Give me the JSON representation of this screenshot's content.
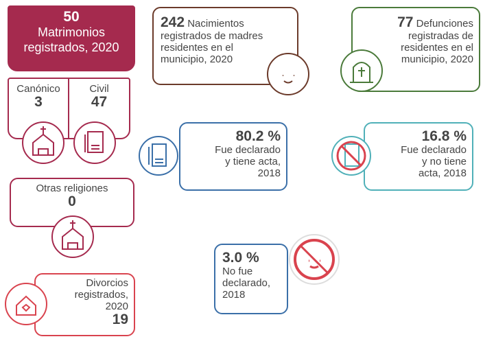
{
  "matrimonios": {
    "value": 50,
    "lines": [
      "Matrimonios",
      "registrados, 2020"
    ]
  },
  "canonico": {
    "label": "Canónico",
    "value": 3
  },
  "civil": {
    "label": "Civil",
    "value": 47
  },
  "otras": {
    "label": "Otras religiones",
    "value": 0
  },
  "divorcios": {
    "lines": [
      "Divorcios",
      "registrados,",
      "2020"
    ],
    "value": 19
  },
  "nacimientos": {
    "value": 242,
    "lines": [
      "Nacimientos",
      "registrados de madres",
      "residentes en el",
      "municipio, 2020"
    ]
  },
  "defunciones": {
    "value": 77,
    "lines": [
      "Defunciones",
      "registradas de",
      "residentes en el",
      "municipio, 2020"
    ]
  },
  "declarado_acta": {
    "value": "80.2 %",
    "lines": [
      "Fue declarado",
      "y tiene acta,",
      "2018"
    ]
  },
  "declarado_sin_acta": {
    "value": "16.8 %",
    "lines": [
      "Fue declarado",
      "y no tiene",
      "acta, 2018"
    ]
  },
  "no_declarado": {
    "value": "3.0 %",
    "lines": [
      "No fue",
      "declarado,",
      "2018"
    ]
  }
}
